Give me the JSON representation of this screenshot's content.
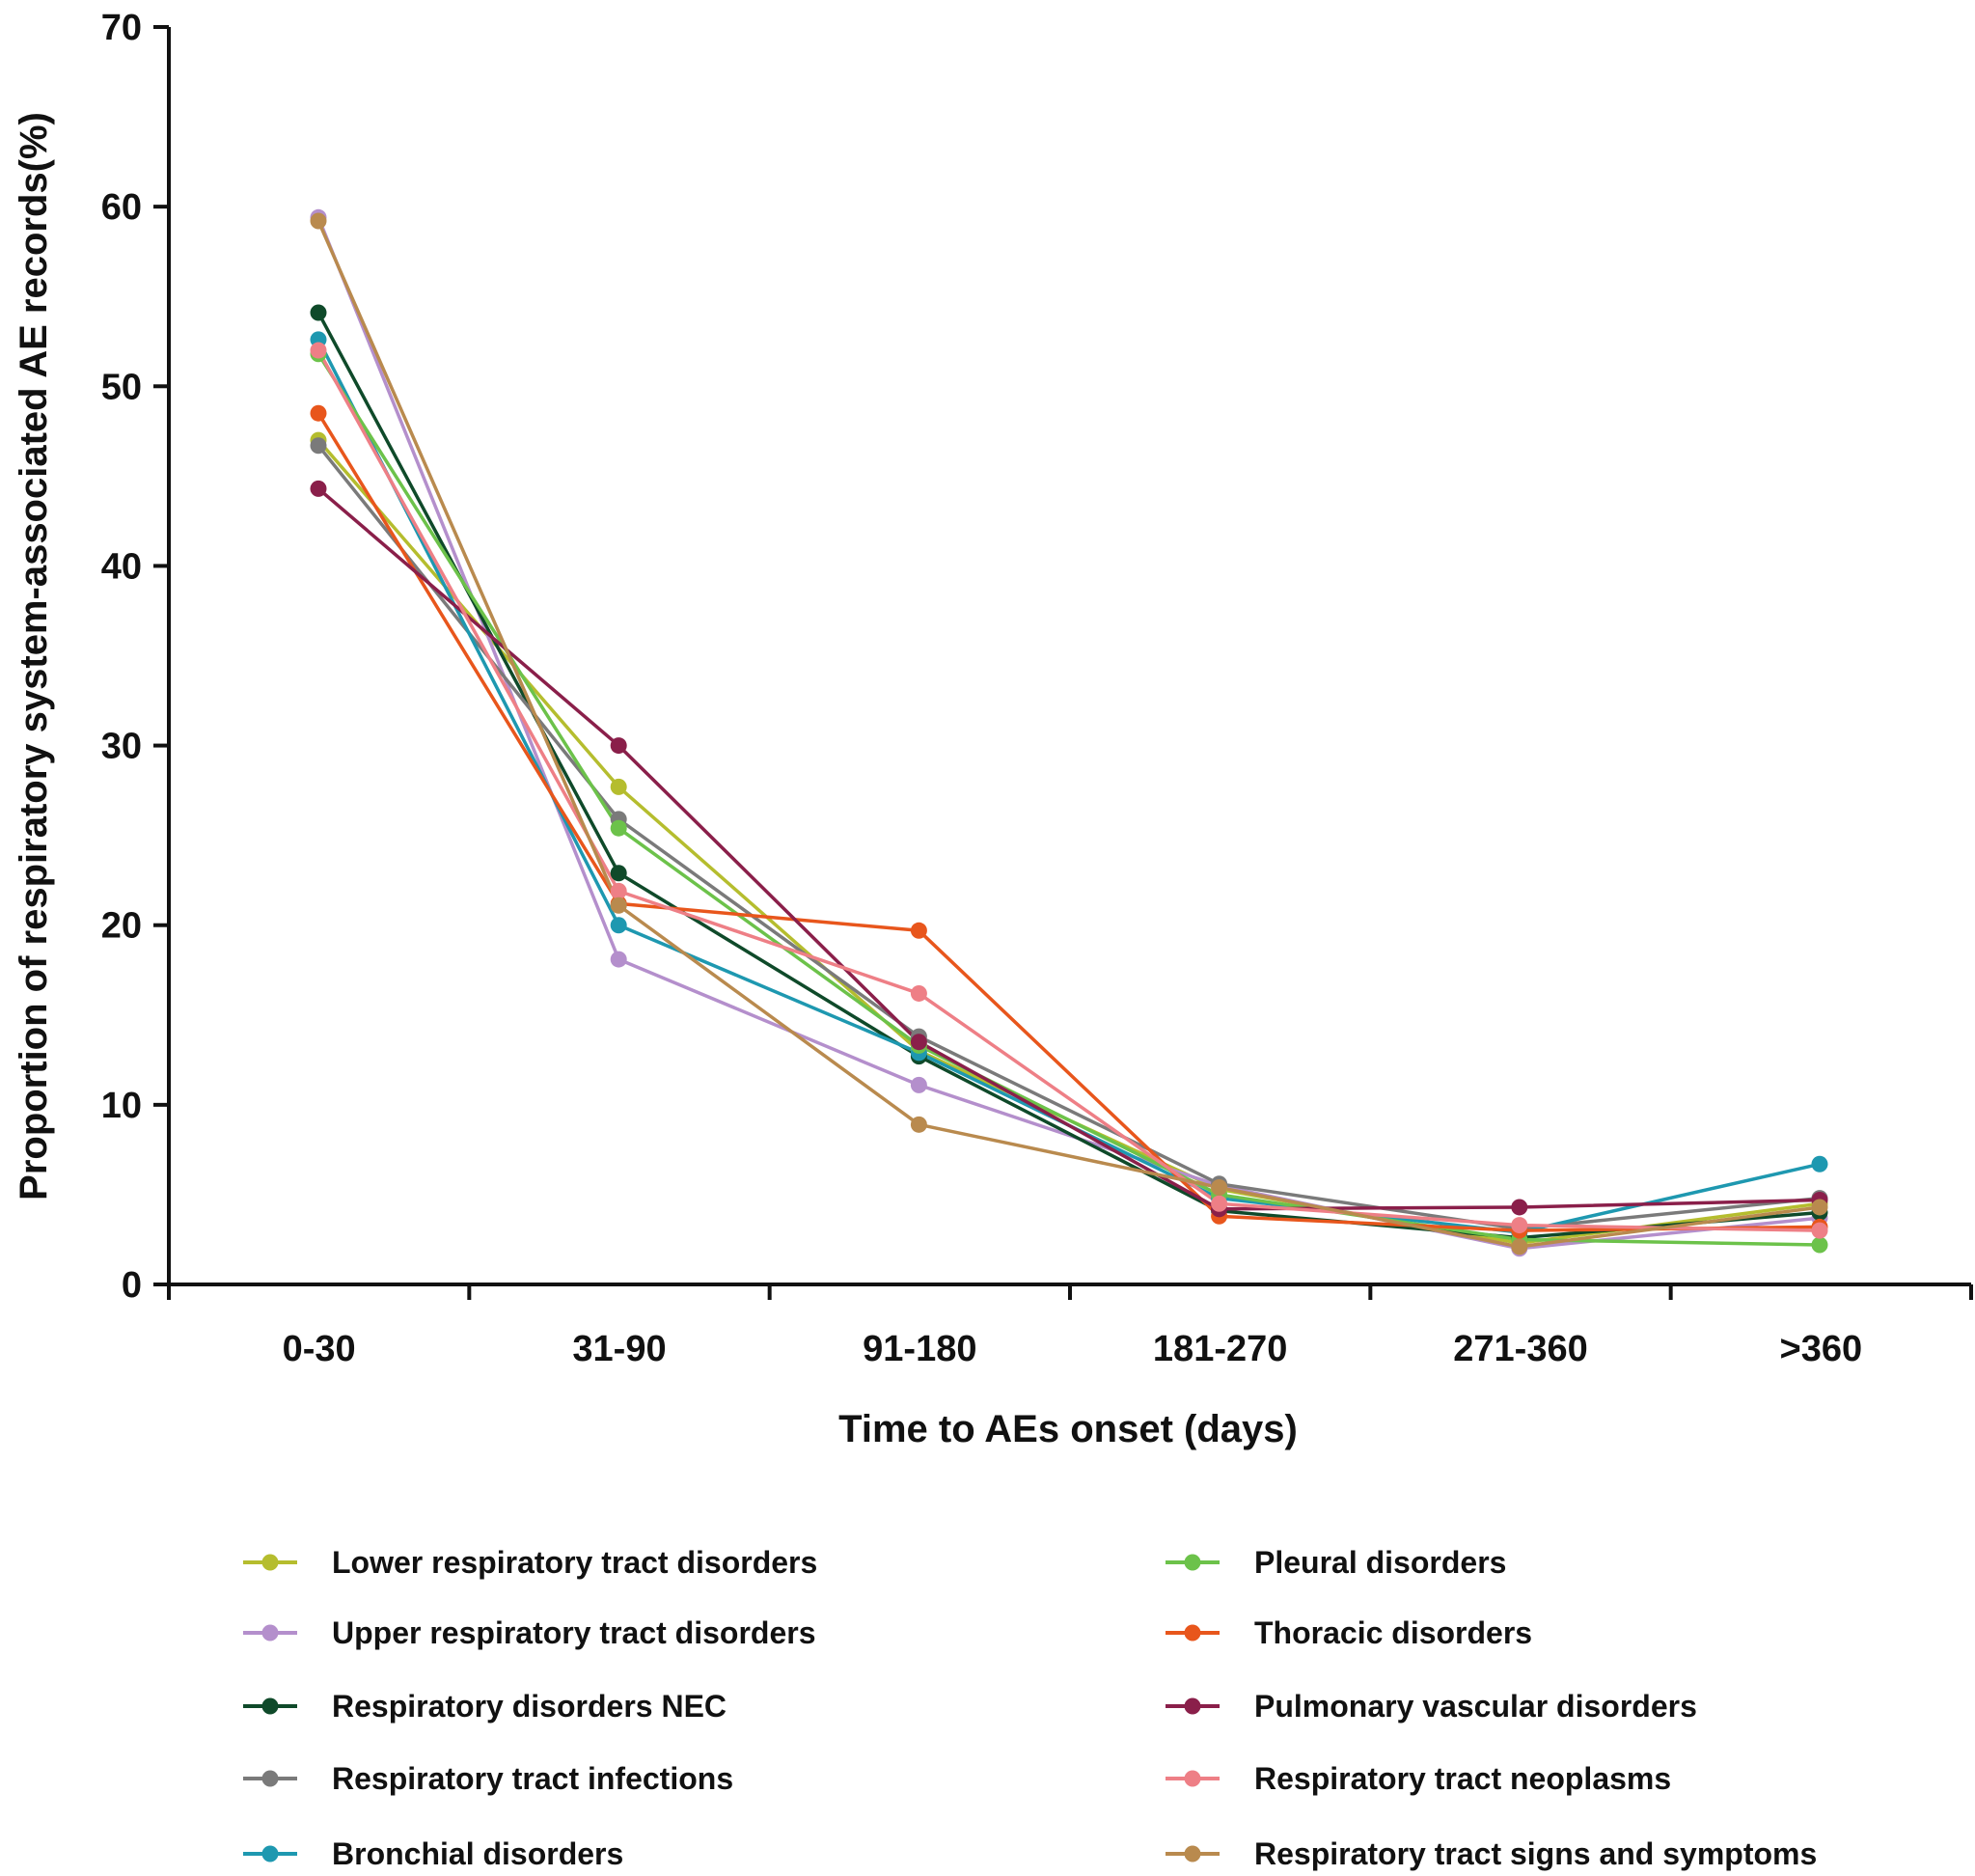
{
  "chart_data": {
    "type": "line",
    "title": "",
    "xlabel": "Time to AEs onset (days)",
    "ylabel": "Proportion of respiratory system-associated AE records(%)",
    "ylim": [
      0,
      70
    ],
    "yticks": [
      0,
      10,
      20,
      30,
      40,
      50,
      60,
      70
    ],
    "categories": [
      "0-30",
      "31-90",
      "91-180",
      "181-270",
      "271-360",
      ">360"
    ],
    "legend_position": "bottom",
    "series": [
      {
        "name": "Lower respiratory tract disorders",
        "color": "#b5bd2e",
        "values": [
          47.0,
          27.7,
          13.0,
          5.3,
          2.3,
          4.5
        ]
      },
      {
        "name": "Upper respiratory tract disorders",
        "color": "#b48fcc",
        "values": [
          59.4,
          18.1,
          11.1,
          5.5,
          2.0,
          3.7
        ]
      },
      {
        "name": "Respiratory disorders NEC",
        "color": "#0f4a2a",
        "values": [
          54.1,
          22.9,
          12.7,
          4.1,
          2.6,
          4.0
        ]
      },
      {
        "name": "Respiratory tract infections",
        "color": "#7a7a7a",
        "values": [
          46.7,
          25.9,
          13.8,
          5.6,
          3.1,
          4.8
        ]
      },
      {
        "name": "Bronchial disorders",
        "color": "#1e98b0",
        "values": [
          52.6,
          20.0,
          12.9,
          4.8,
          2.9,
          6.7
        ]
      },
      {
        "name": "Pleural disorders",
        "color": "#6cc24a",
        "values": [
          51.8,
          25.4,
          13.3,
          5.0,
          2.5,
          2.2
        ]
      },
      {
        "name": "Thoracic disorders",
        "color": "#e8561c",
        "values": [
          48.5,
          21.2,
          19.7,
          3.8,
          3.0,
          3.2
        ]
      },
      {
        "name": "Pulmonary vascular disorders",
        "color": "#8a1f4a",
        "values": [
          44.3,
          30.0,
          13.5,
          4.2,
          4.3,
          4.7
        ]
      },
      {
        "name": "Respiratory tract neoplasms",
        "color": "#ee7f86",
        "values": [
          52.0,
          21.9,
          16.2,
          4.5,
          3.3,
          3.0
        ]
      },
      {
        "name": "Respiratory tract signs and symptoms",
        "color": "#b98a4e",
        "values": [
          59.2,
          21.1,
          8.9,
          5.4,
          2.1,
          4.3
        ]
      }
    ]
  }
}
